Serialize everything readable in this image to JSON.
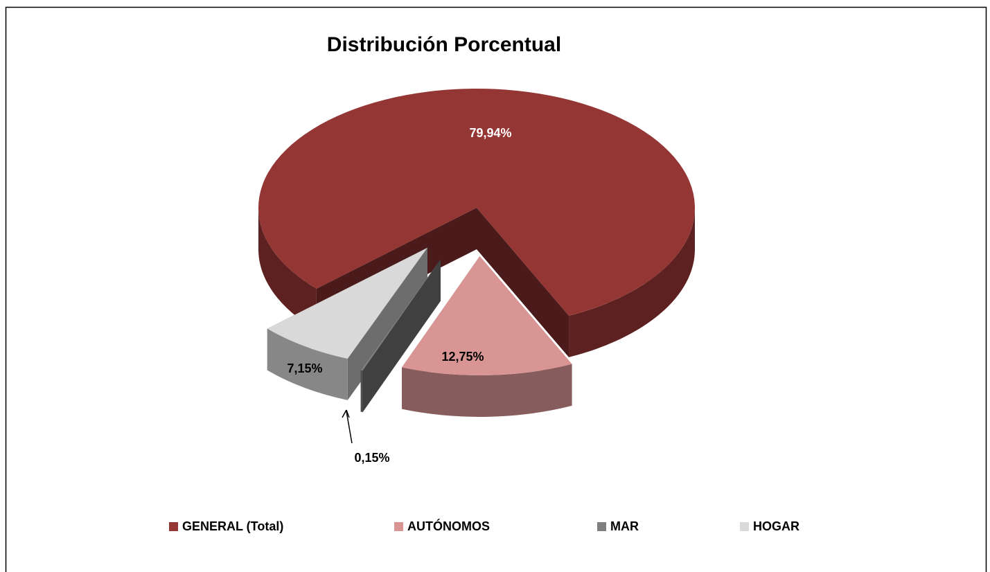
{
  "chart_data": {
    "type": "pie",
    "title": "Distribución Porcentual",
    "categories": [
      "GENERAL (Total)",
      "AUTÓNOMOS",
      "MAR",
      "HOGAR"
    ],
    "values": [
      79.94,
      12.75,
      0.15,
      7.15
    ],
    "value_labels": [
      "79,94%",
      "12,75%",
      "0,15%",
      "7,15%"
    ],
    "colors": [
      "#943634",
      "#d99594",
      "#7f7f7f",
      "#d9d9d9"
    ],
    "legend": "bottom"
  }
}
